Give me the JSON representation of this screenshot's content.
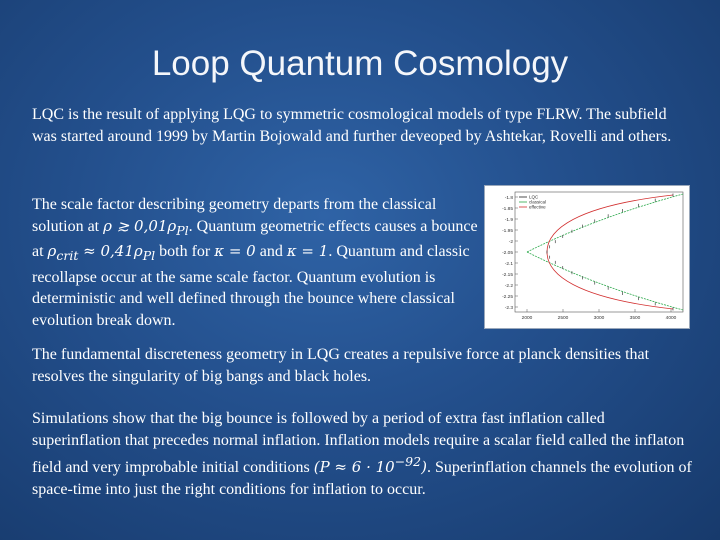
{
  "title": "Loop Quantum Cosmology",
  "paragraphs": {
    "p1": "LQC is the result of applying LQG to symmetric cosmological models of type FLRW. The subfield was started around 1999 by Martin Bojowald and further deveoped by Ashtekar, Rovelli and others.",
    "p2_a": "The scale factor describing geometry departs from the classical solution at ",
    "p2_m1": "ρ ≳ 0,01ρ",
    "p2_m1_sub": "Pl",
    "p2_b": ". Quantum geometric effects causes a bounce at ",
    "p2_m2": "ρ",
    "p2_m2_sub": "crit",
    "p2_m2b": " ≈ 0,41ρ",
    "p2_m2b_sub": "Pl",
    "p2_c": " both for ",
    "p2_m3": "κ = 0",
    "p2_d": " and ",
    "p2_m4": "κ = 1",
    "p2_e": ". Quantum and classic recollapse occur at the same scale factor. Quantum evolution is deterministic and well defined through the bounce where classical evolution break down.",
    "p3": "The fundamental discreteness geometry in LQG creates a repulsive force at planck densities that resolves the singularity of big bangs and black holes.",
    "p4_a": "Simulations show that the big bounce is followed by a period of extra fast inflation called superinflation that precedes normal inflation. Inflation models require a scalar field called the inflaton field and very improbable initial conditions ",
    "p4_m": "(P ≈ 6 · 10",
    "p4_m_sup": "−92",
    "p4_m_end": ")",
    "p4_b": ". Superinflation channels the evolution of space-time into just the right conditions for inflation to occur."
  },
  "chart_data": {
    "type": "line",
    "legend": [
      "LQC",
      "classical",
      "effective"
    ],
    "legend_placement": "top-left",
    "x_ticks": [
      "2000",
      "2500",
      "3000",
      "3500",
      "4000"
    ],
    "y_ticks": [
      "-1.8",
      "-1.85",
      "-1.9",
      "-1.95",
      "-2",
      "-2.05",
      "-2.1",
      "-2.15",
      "-2.2",
      "-2.25",
      "-2.3"
    ],
    "colors": {
      "lqc": "#222222",
      "classical": "#2aa84a",
      "effective": "#d23030"
    }
  }
}
